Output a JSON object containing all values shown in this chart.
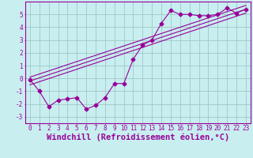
{
  "xlabel": "Windchill (Refroidissement éolien,°C)",
  "bg_color": "#c8eef0",
  "grid_color": "#a0c8c8",
  "line_color": "#990099",
  "xlim": [
    -0.5,
    23.5
  ],
  "ylim": [
    -3.5,
    6.0
  ],
  "xticks": [
    0,
    1,
    2,
    3,
    4,
    5,
    6,
    7,
    8,
    9,
    10,
    11,
    12,
    13,
    14,
    15,
    16,
    17,
    18,
    19,
    20,
    21,
    22,
    23
  ],
  "yticks": [
    -3,
    -2,
    -1,
    0,
    1,
    2,
    3,
    4,
    5
  ],
  "scatter_x": [
    0,
    1,
    2,
    3,
    4,
    5,
    6,
    7,
    8,
    9,
    10,
    11,
    12,
    13,
    14,
    15,
    16,
    17,
    18,
    19,
    20,
    21,
    22,
    23
  ],
  "scatter_y": [
    -0.1,
    -1.0,
    -2.2,
    -1.7,
    -1.6,
    -1.5,
    -2.4,
    -2.1,
    -1.5,
    -0.4,
    -0.4,
    1.5,
    2.6,
    3.0,
    4.3,
    5.3,
    5.0,
    5.0,
    4.9,
    4.9,
    5.0,
    5.5,
    5.1,
    5.4
  ],
  "line1_x": [
    0,
    23
  ],
  "line1_y": [
    -0.5,
    5.1
  ],
  "line2_x": [
    0,
    23
  ],
  "line2_y": [
    -0.2,
    5.4
  ],
  "line3_x": [
    0,
    23
  ],
  "line3_y": [
    0.1,
    5.7
  ],
  "marker_size": 2.5,
  "font_family": "monospace",
  "tick_fontsize": 5.5,
  "label_fontsize": 7.5
}
